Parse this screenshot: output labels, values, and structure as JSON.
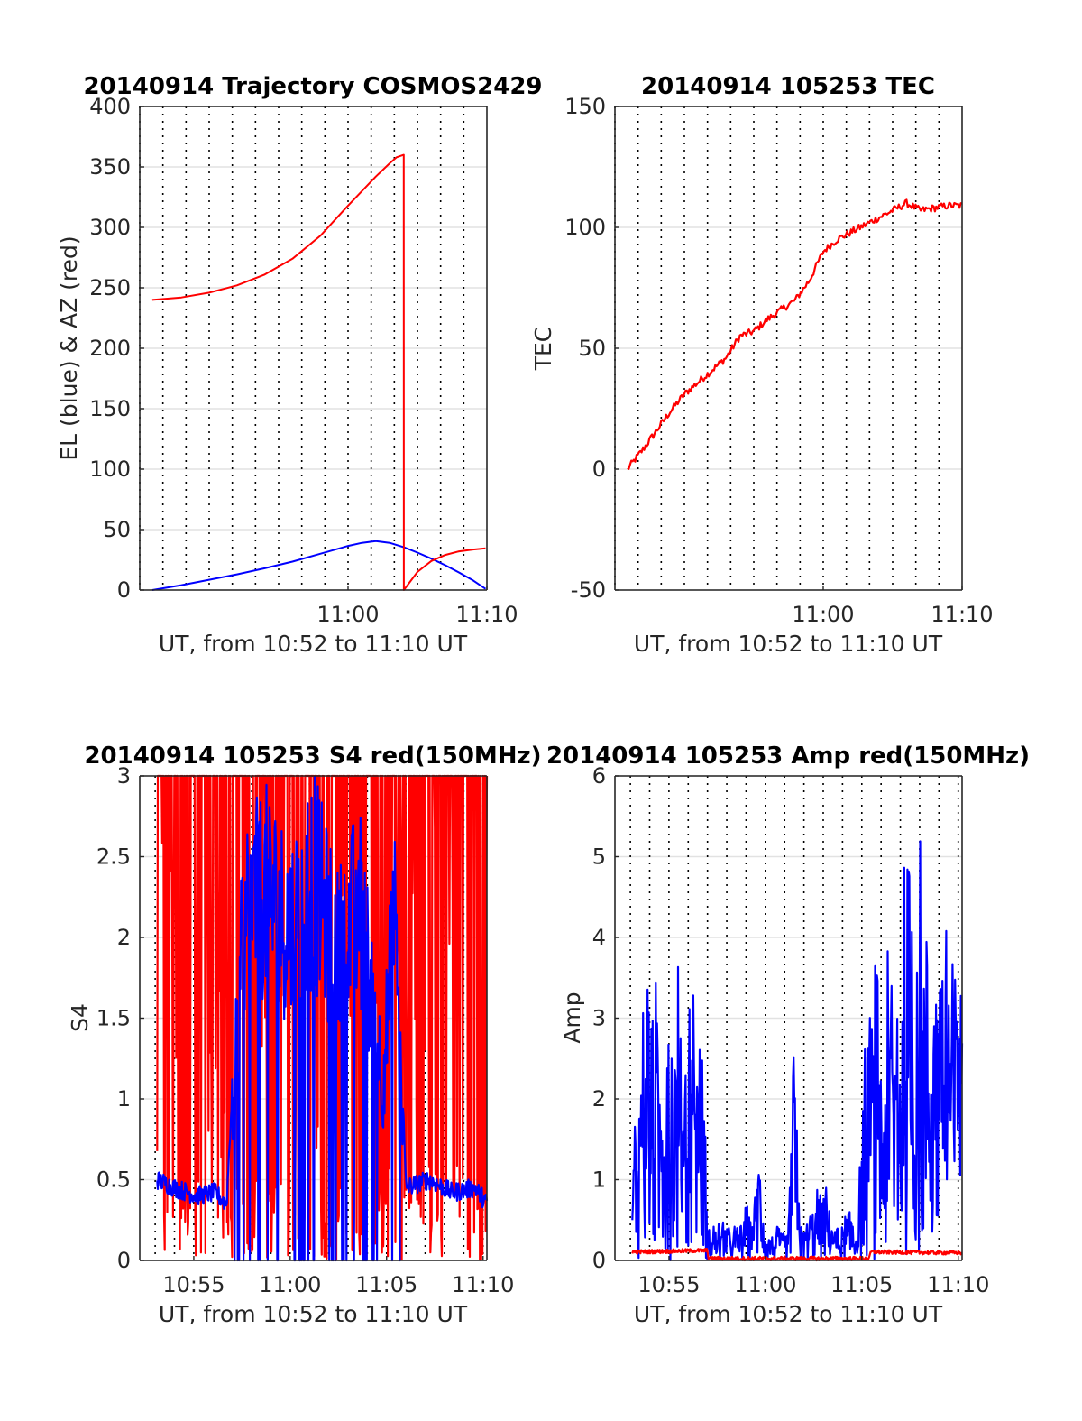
{
  "figure": {
    "background": "#ffffff"
  },
  "chart_data": [
    {
      "id": "trajectory",
      "type": "line",
      "title": "20140914 Trajectory COSMOS2429",
      "xlabel": "UT, from 10:52 to 11:10 UT",
      "ylabel": "EL (blue) & AZ (red)",
      "xlim": [
        10.85,
        11.1
      ],
      "ylim": [
        0,
        400
      ],
      "yticks": [
        0,
        50,
        100,
        150,
        200,
        250,
        300,
        350,
        400
      ],
      "xticks": [
        {
          "x": 11.0,
          "label": "11:00"
        },
        {
          "x": 11.1,
          "label": "11:10"
        }
      ],
      "grid": true,
      "series": [
        {
          "name": "EL",
          "color": "#0000ff",
          "x": [
            10.859,
            10.88,
            10.9,
            10.92,
            10.94,
            10.96,
            10.98,
            11.0,
            11.01,
            11.02,
            11.03,
            11.04,
            11.05,
            11.06,
            11.07,
            11.08,
            11.09,
            11.099
          ],
          "y": [
            0,
            4,
            8.5,
            13,
            18,
            23.5,
            30,
            36.5,
            39,
            40.5,
            39,
            35.5,
            31,
            26,
            20.5,
            14.5,
            8,
            1
          ]
        },
        {
          "name": "AZ",
          "color": "#ff0000",
          "x": [
            10.859,
            10.88,
            10.9,
            10.92,
            10.94,
            10.96,
            10.98,
            11.0,
            11.01,
            11.02,
            11.03,
            11.035,
            11.0401,
            11.0402,
            11.05,
            11.06,
            11.07,
            11.08,
            11.09,
            11.099
          ],
          "y": [
            240,
            242,
            246,
            252,
            261,
            274,
            293,
            318,
            330,
            342,
            353,
            358,
            360,
            0,
            15,
            24,
            29,
            32,
            33.5,
            34.5
          ]
        }
      ]
    },
    {
      "id": "tec",
      "type": "line",
      "title": "20140914 105253 TEC",
      "xlabel": "UT, from 10:52 to 11:10 UT",
      "ylabel": "TEC",
      "xlim": [
        10.85,
        11.1
      ],
      "ylim": [
        -50,
        150
      ],
      "yticks": [
        -50,
        0,
        50,
        100,
        150
      ],
      "xticks": [
        {
          "x": 11.0,
          "label": "11:00"
        },
        {
          "x": 11.1,
          "label": "11:10"
        }
      ],
      "grid": true,
      "series": [
        {
          "name": "TEC",
          "color": "#ff0000",
          "x": [
            10.859,
            10.87,
            10.88,
            10.89,
            10.9,
            10.91,
            10.92,
            10.93,
            10.94,
            10.95,
            10.96,
            10.97,
            10.98,
            10.99,
            11.0,
            11.01,
            11.02,
            11.03,
            11.04,
            11.05,
            11.06,
            11.07,
            11.08,
            11.09,
            11.1
          ],
          "y": [
            0,
            8,
            16,
            24,
            31,
            36,
            41,
            46,
            55,
            57,
            62,
            66,
            70,
            78,
            90,
            95,
            98,
            101,
            104,
            107,
            110,
            107,
            108,
            109,
            109
          ]
        }
      ]
    },
    {
      "id": "s4",
      "type": "line",
      "title": "20140914 105253 S4 red(150MHz)",
      "xlabel": "UT, from 10:52 to 11:10 UT",
      "ylabel": "S4",
      "xlim": [
        10.87,
        11.17
      ],
      "ylim": [
        0,
        3
      ],
      "yticks": [
        0,
        0.5,
        1,
        1.5,
        2,
        2.5,
        3
      ],
      "xticks": [
        {
          "x": 10.9167,
          "label": "10:55"
        },
        {
          "x": 11.0,
          "label": "11:00"
        },
        {
          "x": 11.0833,
          "label": "11:05"
        },
        {
          "x": 11.1667,
          "label": "11:10"
        }
      ],
      "grid": true,
      "series": [
        {
          "name": "S4 red",
          "color": "#ff0000",
          "x": [
            10.885,
            10.9,
            10.92,
            10.94,
            10.96,
            10.98,
            11.0,
            11.02,
            11.04,
            11.06,
            11.08,
            11.1,
            11.12,
            11.14,
            11.16,
            11.17
          ],
          "y": [
            3.0,
            2.5,
            3.0,
            2.3,
            3.0,
            2.0,
            3.0,
            1.0,
            3.0,
            0.8,
            3.0,
            2.9,
            3.0,
            2.4,
            3.0,
            3.0
          ]
        },
        {
          "name": "S4 blue",
          "color": "#0000ff",
          "x": [
            10.885,
            10.9,
            10.92,
            10.935,
            10.945,
            10.96,
            10.98,
            11.0,
            11.02,
            11.04,
            11.06,
            11.08,
            11.09,
            11.1,
            11.12,
            11.14,
            11.16,
            11.17
          ],
          "y": [
            0.5,
            0.45,
            0.4,
            0.42,
            0.35,
            2.5,
            2.7,
            2.4,
            2.8,
            2.2,
            2.6,
            1.3,
            2.5,
            0.45,
            0.5,
            0.42,
            0.45,
            0.35
          ]
        }
      ]
    },
    {
      "id": "amp",
      "type": "line",
      "title": "20140914 105253 Amp red(150MHz)",
      "xlabel": "UT, from 10:52 to 11:10 UT",
      "ylabel": "Amp",
      "xlim": [
        10.87,
        11.17
      ],
      "ylim": [
        0,
        6
      ],
      "yticks": [
        0,
        1,
        2,
        3,
        4,
        5,
        6
      ],
      "xticks": [
        {
          "x": 10.9167,
          "label": "10:55"
        },
        {
          "x": 11.0,
          "label": "11:00"
        },
        {
          "x": 11.0833,
          "label": "11:05"
        },
        {
          "x": 11.1667,
          "label": "11:10"
        }
      ],
      "grid": true,
      "series": [
        {
          "name": "Amp blue",
          "color": "#0000ff",
          "x": [
            10.885,
            10.89,
            10.9,
            10.91,
            10.92,
            10.93,
            10.94,
            10.945,
            10.95,
            10.97,
            10.99,
            10.995,
            11.0,
            11.02,
            11.025,
            11.03,
            11.05,
            11.06,
            11.08,
            11.09,
            11.1,
            11.12,
            11.14,
            11.15,
            11.16,
            11.17
          ],
          "y": [
            1.2,
            2.2,
            3.0,
            2.5,
            3.2,
            2.6,
            3.0,
            2.8,
            0.4,
            0.35,
            0.6,
            1.4,
            0.3,
            0.35,
            2.3,
            0.3,
            0.9,
            0.4,
            0.5,
            3.1,
            2.6,
            3.8,
            4.2,
            3.4,
            3.8,
            3.5
          ]
        },
        {
          "name": "Amp red",
          "color": "#ff0000",
          "x": [
            10.885,
            10.95,
            10.951,
            11.09,
            11.091,
            11.17
          ],
          "y": [
            0.08,
            0.1,
            0,
            0,
            0.08,
            0.07
          ]
        }
      ]
    }
  ]
}
